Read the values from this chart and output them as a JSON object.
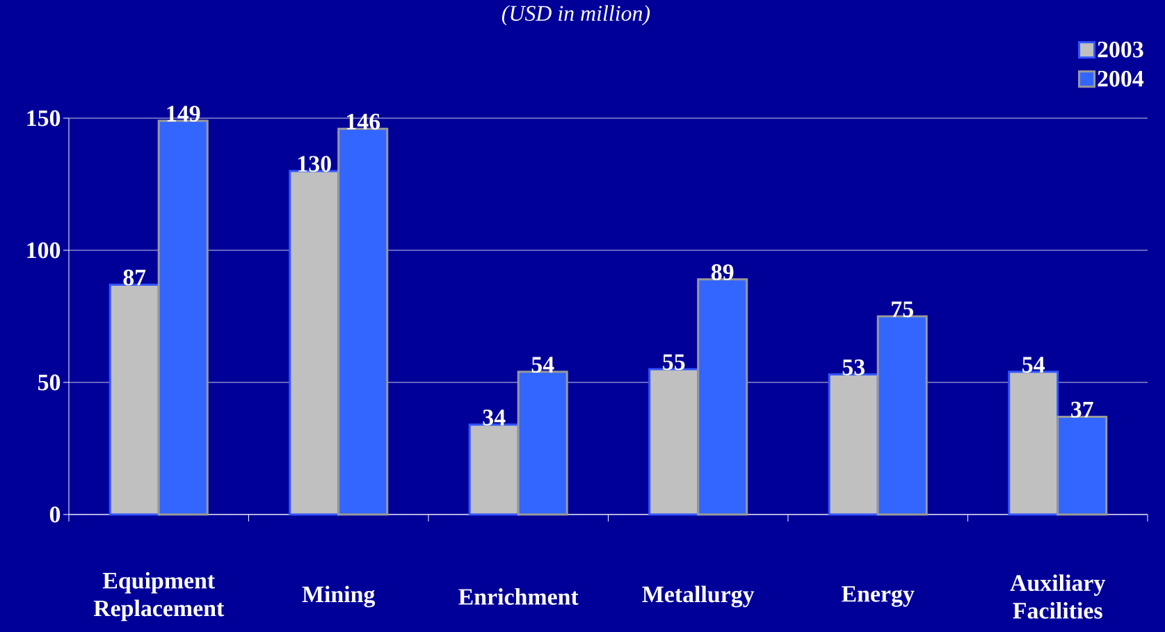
{
  "chart_data": {
    "type": "bar",
    "title": "(USD in million)",
    "categories": [
      "Equipment Replacement",
      "Mining",
      "Enrichment",
      "Metallurgy",
      "Energy",
      "Auxiliary Facilities"
    ],
    "series": [
      {
        "name": "2003",
        "color": "#c0c0c0",
        "values": [
          87,
          130,
          34,
          55,
          53,
          54
        ]
      },
      {
        "name": "2004",
        "color": "#3366ff",
        "values": [
          149,
          146,
          54,
          89,
          75,
          37
        ]
      }
    ],
    "ylim": [
      0,
      150
    ],
    "yticks": [
      0,
      50,
      100,
      150
    ],
    "grid": "y",
    "legend": "top right",
    "data_labels": true
  }
}
